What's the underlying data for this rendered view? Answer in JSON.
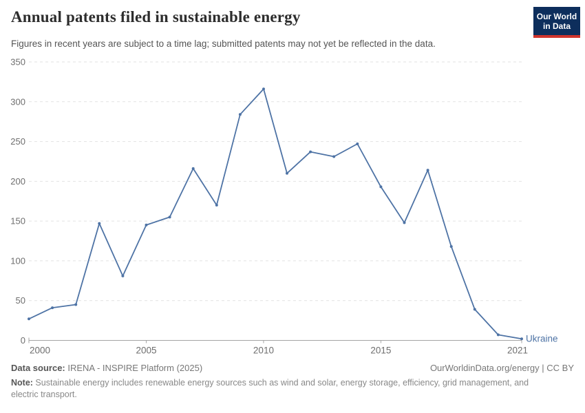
{
  "header": {
    "title": "Annual patents filed in sustainable energy",
    "subtitle": "Figures in recent years are subject to a time lag; submitted patents may not yet be reflected in the data."
  },
  "logo": {
    "line1": "Our World",
    "line2": "in Data",
    "bg_color": "#0d2e5c",
    "stripe_color": "#d0342c"
  },
  "chart_data": {
    "type": "line",
    "title": "Annual patents filed in sustainable energy",
    "xlabel": "",
    "ylabel": "",
    "x": [
      2000,
      2001,
      2002,
      2003,
      2004,
      2005,
      2006,
      2007,
      2008,
      2009,
      2010,
      2011,
      2012,
      2013,
      2014,
      2015,
      2016,
      2017,
      2018,
      2019,
      2020,
      2021
    ],
    "series": [
      {
        "name": "Ukraine",
        "color": "#4e73a5",
        "values": [
          27,
          41,
          45,
          147,
          81,
          145,
          155,
          216,
          170,
          284,
          316,
          210,
          237,
          231,
          247,
          193,
          148,
          214,
          118,
          39,
          7,
          2
        ]
      }
    ],
    "ylim": [
      0,
      350
    ],
    "yticks": [
      0,
      50,
      100,
      150,
      200,
      250,
      300,
      350
    ],
    "xticks": [
      2000,
      2005,
      2010,
      2015,
      2021
    ],
    "grid": "dashed horizontal",
    "legend_position": "end-of-line",
    "colors": {
      "gridline": "#e2e2e2",
      "axis": "#a3a3a3",
      "tick_text": "#6e6e6e"
    }
  },
  "footer": {
    "datasource_label": "Data source:",
    "datasource_value": " IRENA - INSPIRE Platform (2025)",
    "credit": "OurWorldinData.org/energy | CC BY",
    "note_label": "Note:",
    "note_text": " Sustainable energy includes renewable energy sources such as wind and solar, energy storage, efficiency, grid management, and electric transport."
  }
}
